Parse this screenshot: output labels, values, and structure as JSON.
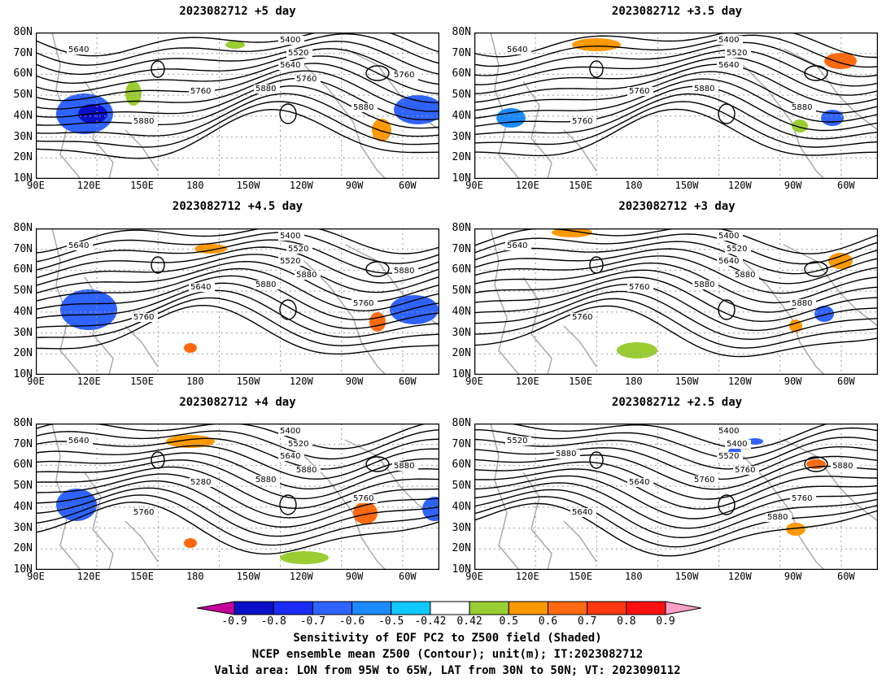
{
  "panels": [
    {
      "title": "2023082712 +5 day",
      "contour_labels": [
        "5400",
        "5520",
        "5640",
        "5640",
        "5760",
        "5880",
        "5880",
        "5880",
        "5760",
        "5760"
      ]
    },
    {
      "title": "2023082712 +3.5 day",
      "contour_labels": [
        "5400",
        "5520",
        "5640",
        "5640",
        "5760",
        "5760",
        "5880",
        "5880"
      ]
    },
    {
      "title": "2023082712 +4.5 day",
      "contour_labels": [
        "5400",
        "5520",
        "5520",
        "5640",
        "5640",
        "5760",
        "5760",
        "5880",
        "5880",
        "5880"
      ]
    },
    {
      "title": "2023082712 +3 day",
      "contour_labels": [
        "5400",
        "5520",
        "5640",
        "5640",
        "5760",
        "5760",
        "5880",
        "5880",
        "5880"
      ]
    },
    {
      "title": "2023082712 +4 day",
      "contour_labels": [
        "5400",
        "5520",
        "5640",
        "5640",
        "5280",
        "5760",
        "5760",
        "5880",
        "5880",
        "5880"
      ]
    },
    {
      "title": "2023082712 +2.5 day",
      "contour_labels": [
        "5400",
        "5400",
        "5520",
        "5520",
        "5640",
        "5640",
        "5760",
        "5760",
        "5760",
        "5880",
        "5880",
        "5880"
      ]
    }
  ],
  "lat_labels": [
    "80N",
    "70N",
    "60N",
    "50N",
    "40N",
    "30N",
    "20N",
    "10N"
  ],
  "lon_labels": [
    "90E",
    "120E",
    "150E",
    "180",
    "150W",
    "120W",
    "90W",
    "60W"
  ],
  "colorbar": {
    "labels": [
      "-0.9",
      "-0.8",
      "-0.7",
      "-0.6",
      "-0.5",
      "-0.42",
      "0.42",
      "0.5",
      "0.6",
      "0.7",
      "0.8",
      "0.9"
    ],
    "colors": [
      "#0a10c8",
      "#1b2cf5",
      "#2f63ff",
      "#1b8bff",
      "#10c8ff",
      "#ffffff",
      "#9acd32",
      "#ff9900",
      "#ff6a10",
      "#ff3810",
      "#ff1010"
    ],
    "left_tip": "#c4009a",
    "right_tip": "#f8a0c8"
  },
  "footer": [
    "Sensitivity of EOF PC2 to Z500 field (Shaded)",
    "NCEP ensemble mean Z500 (Contour); unit(m); IT:2023082712",
    "Valid area: LON from 95W to 65W, LAT from 30N to 50N; VT: 2023090112"
  ]
}
